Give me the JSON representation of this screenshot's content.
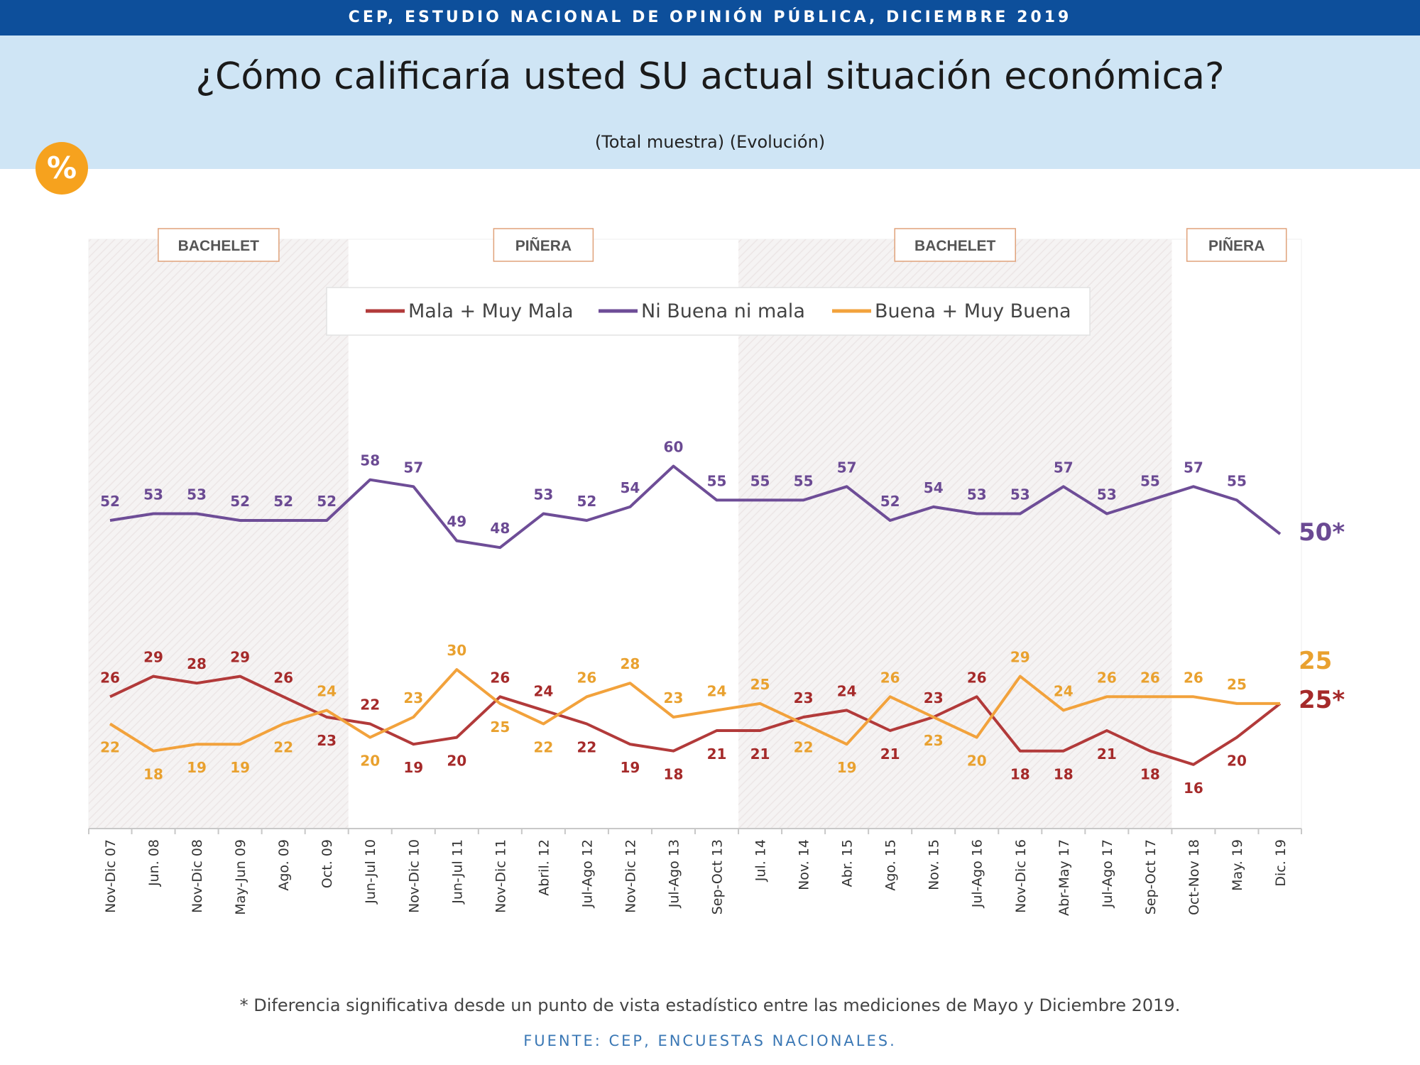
{
  "header": {
    "banner": "CEP, ESTUDIO NACIONAL DE OPINIÓN PÚBLICA, DICIEMBRE 2019",
    "title": "¿Cómo calificaría usted SU actual situación económica?",
    "subtitle": "(Total muestra) (Evolución)",
    "badge": "%"
  },
  "footer": {
    "note": "* Diferencia significativa desde un punto de vista estadístico entre las mediciones de Mayo y Diciembre 2019.",
    "source": "FUENTE: CEP, ENCUESTAS NACIONALES."
  },
  "colors": {
    "mala": "#b23a3a",
    "ni": "#6e4d97",
    "buena": "#f2a23c",
    "period_box_border": "#e0a27a"
  },
  "chart_data": {
    "type": "line",
    "categories": [
      "Nov-Dic 07",
      "Jun. 08",
      "Nov-Dic 08",
      "May-Jun 09",
      "Ago. 09",
      "Oct. 09",
      "Jun-Jul 10",
      "Nov-Dic 10",
      "Jun-Jul 11",
      "Nov-Dic 11",
      "Abril. 12",
      "Jul-Ago 12",
      "Nov-Dic 12",
      "Jul-Ago 13",
      "Sep-Oct 13",
      "Jul. 14",
      "Nov. 14",
      "Abr. 15",
      "Ago. 15",
      "Nov. 15",
      "Jul-Ago 16",
      "Nov-Dic 16",
      "Abr-May 17",
      "Jul-Ago 17",
      "Sep-Oct 17",
      "Oct-Nov 18",
      "May. 19",
      "Dic. 19"
    ],
    "series": [
      {
        "key": "mala",
        "name": "Mala + Muy Mala",
        "color": "#b23a3a",
        "values": [
          26,
          29,
          28,
          29,
          26,
          23,
          22,
          19,
          20,
          26,
          24,
          22,
          19,
          18,
          21,
          21,
          23,
          24,
          21,
          23,
          26,
          18,
          18,
          21,
          18,
          16,
          20,
          25
        ],
        "final_label": "25*"
      },
      {
        "key": "ni",
        "name": "Ni Buena ni mala",
        "color": "#6e4d97",
        "values": [
          52,
          53,
          53,
          52,
          52,
          52,
          58,
          57,
          49,
          48,
          53,
          52,
          54,
          60,
          55,
          55,
          55,
          57,
          52,
          54,
          53,
          53,
          57,
          53,
          55,
          57,
          55,
          50
        ],
        "final_label": "50*"
      },
      {
        "key": "buena",
        "name": "Buena + Muy Buena",
        "color": "#f2a23c",
        "values": [
          22,
          18,
          19,
          19,
          22,
          24,
          20,
          23,
          30,
          25,
          22,
          26,
          28,
          23,
          24,
          25,
          22,
          19,
          26,
          23,
          20,
          29,
          24,
          26,
          26,
          26,
          25,
          25
        ],
        "final_label": "25"
      }
    ],
    "periods": [
      {
        "label": "BACHELET",
        "from": 0,
        "to": 5,
        "shaded": true
      },
      {
        "label": "PIÑERA",
        "from": 6,
        "to": 14,
        "shaded": false
      },
      {
        "label": "BACHELET",
        "from": 15,
        "to": 24,
        "shaded": true
      },
      {
        "label": "PIÑERA",
        "from": 25,
        "to": 27,
        "shaded": false
      }
    ],
    "legend_position": "top-center",
    "xlabel": "",
    "ylabel": "",
    "grid": false
  }
}
